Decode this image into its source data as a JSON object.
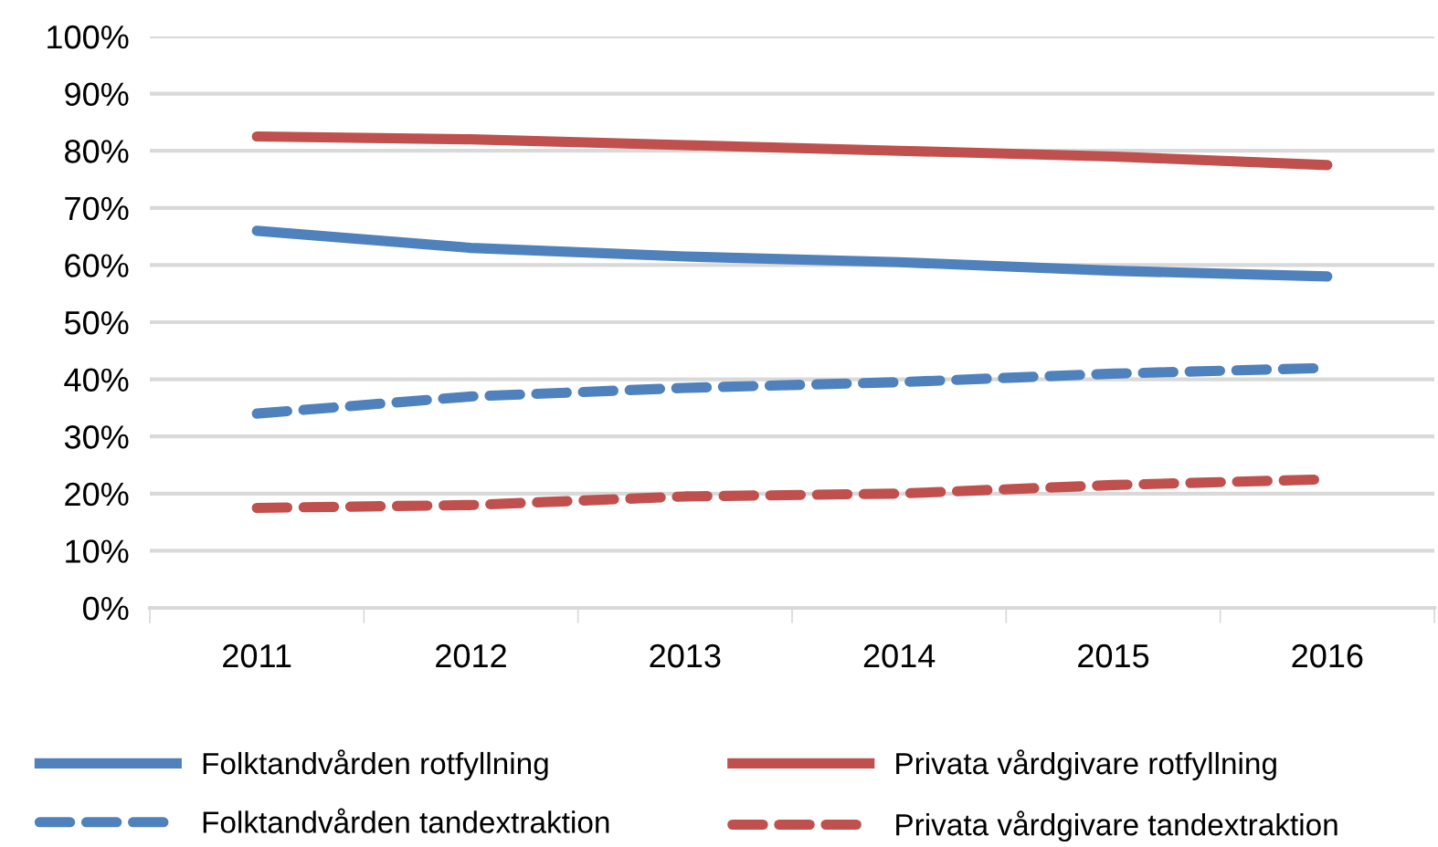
{
  "chart_data": {
    "type": "line",
    "categories": [
      "2011",
      "2012",
      "2013",
      "2014",
      "2015",
      "2016"
    ],
    "series": [
      {
        "name": "Folktandvården rotfyllning",
        "color": "#4f81bd",
        "line_style": "solid",
        "values": [
          66,
          63,
          61.5,
          60.5,
          59,
          58
        ]
      },
      {
        "name": "Folktandvården tandextraktion",
        "color": "#4f81bd",
        "line_style": "dashed",
        "values": [
          34,
          37,
          38.5,
          39.5,
          41,
          42
        ]
      },
      {
        "name": "Privata vårdgivare rotfyllning",
        "color": "#c0504d",
        "line_style": "solid",
        "values": [
          82.5,
          82,
          81,
          80,
          79,
          77.5
        ]
      },
      {
        "name": "Privata vårdgivare tandextraktion",
        "color": "#c0504d",
        "line_style": "dashed",
        "values": [
          17.5,
          18,
          19.5,
          20,
          21.5,
          22.5
        ]
      }
    ],
    "ylim": [
      0,
      100
    ],
    "yticks": [
      {
        "value": 0,
        "label": "0%"
      },
      {
        "value": 10,
        "label": "10%"
      },
      {
        "value": 20,
        "label": "20%"
      },
      {
        "value": 30,
        "label": "30%"
      },
      {
        "value": 40,
        "label": "40%"
      },
      {
        "value": 50,
        "label": "50%"
      },
      {
        "value": 60,
        "label": "60%"
      },
      {
        "value": 70,
        "label": "70%"
      },
      {
        "value": 80,
        "label": "80%"
      },
      {
        "value": 90,
        "label": "90%"
      },
      {
        "value": 100,
        "label": "100%"
      }
    ],
    "grid": "y",
    "legend": "bottom",
    "marker": "none"
  }
}
